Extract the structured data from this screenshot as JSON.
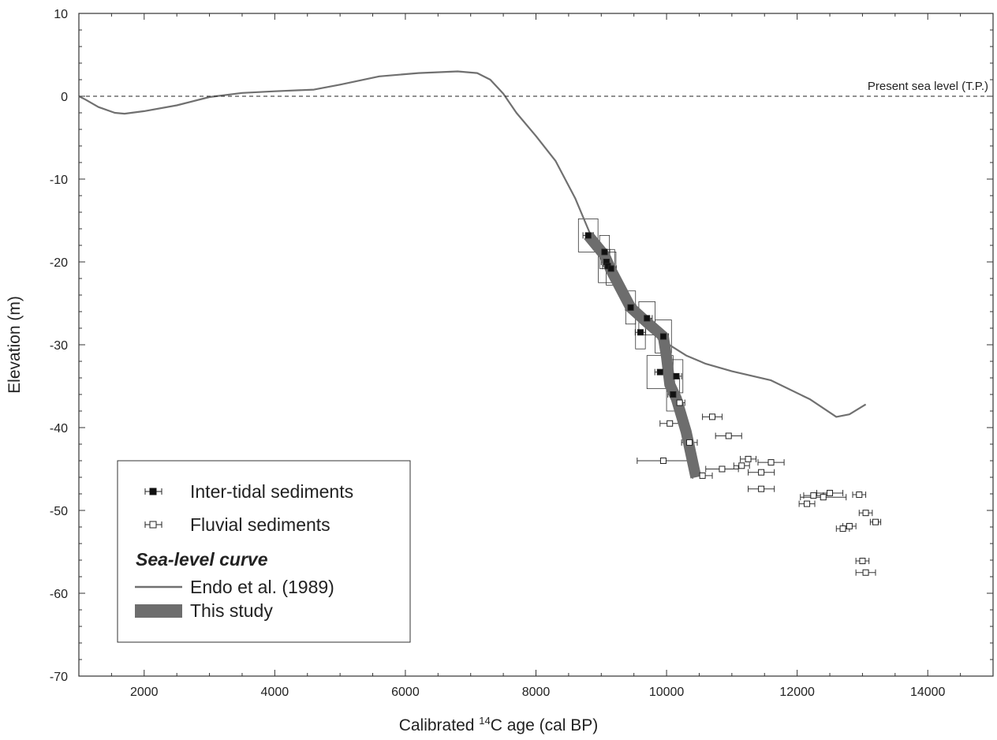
{
  "chart_data": {
    "type": "scatter",
    "xlabel_prefix": "Calibrated ",
    "xlabel_sup": "14",
    "xlabel_suffix": "C age (cal BP)",
    "ylabel": "Elevation (m)",
    "xlim": [
      1000,
      15000
    ],
    "ylim": [
      -70,
      10
    ],
    "x_ticks": [
      2000,
      4000,
      6000,
      8000,
      10000,
      12000,
      14000
    ],
    "y_ticks": [
      10,
      0,
      -10,
      -20,
      -30,
      -40,
      -50,
      -60,
      -70
    ],
    "grid": false,
    "reference_line": {
      "y": 0,
      "label": "Present sea level (T.P.)",
      "style": "dashed"
    },
    "legend": {
      "placement": "bottom-left",
      "intertidal_label": "Inter-tidal sediments",
      "fluvial_label": "Fluvial sediments",
      "curve_heading": "Sea-level curve",
      "endo_label": "Endo et al. (1989)",
      "study_label": "This study"
    },
    "series": [
      {
        "name": "Inter-tidal sediments",
        "marker": "filled-square",
        "points": [
          {
            "x": 8800,
            "y": -16.8,
            "xerr": 80
          },
          {
            "x": 9050,
            "y": -18.8,
            "xerr": 80
          },
          {
            "x": 9080,
            "y": -20.0,
            "xerr": 80
          },
          {
            "x": 9100,
            "y": -20.5,
            "xerr": 80
          },
          {
            "x": 9150,
            "y": -20.8,
            "xerr": 80
          },
          {
            "x": 9450,
            "y": -25.5,
            "xerr": 80
          },
          {
            "x": 9700,
            "y": -26.8,
            "xerr": 80
          },
          {
            "x": 9600,
            "y": -28.5,
            "xerr": 80
          },
          {
            "x": 9950,
            "y": -29.0,
            "xerr": 80
          },
          {
            "x": 9900,
            "y": -33.3,
            "xerr": 80
          },
          {
            "x": 10150,
            "y": -33.8,
            "xerr": 80
          },
          {
            "x": 10100,
            "y": -36.0,
            "xerr": 80
          }
        ]
      },
      {
        "name": "Fluvial sediments",
        "marker": "open-square",
        "points": [
          {
            "x": 10200,
            "y": -37.0,
            "xerr": 80
          },
          {
            "x": 10700,
            "y": -38.7,
            "xerr": 150
          },
          {
            "x": 10050,
            "y": -39.5,
            "xerr": 150
          },
          {
            "x": 10950,
            "y": -41.0,
            "xerr": 200
          },
          {
            "x": 10350,
            "y": -41.8,
            "xerr": 120
          },
          {
            "x": 9950,
            "y": -44.0,
            "xerr": 400
          },
          {
            "x": 11250,
            "y": -43.8,
            "xerr": 120
          },
          {
            "x": 11600,
            "y": -44.2,
            "xerr": 200
          },
          {
            "x": 11150,
            "y": -44.6,
            "xerr": 120
          },
          {
            "x": 10850,
            "y": -45.0,
            "xerr": 250
          },
          {
            "x": 11450,
            "y": -45.4,
            "xerr": 200
          },
          {
            "x": 10550,
            "y": -45.8,
            "xerr": 150
          },
          {
            "x": 11450,
            "y": -47.4,
            "xerr": 200
          },
          {
            "x": 12500,
            "y": -47.9,
            "xerr": 200
          },
          {
            "x": 12950,
            "y": -48.1,
            "xerr": 100
          },
          {
            "x": 12250,
            "y": -48.2,
            "xerr": 150
          },
          {
            "x": 12400,
            "y": -48.4,
            "xerr": 350
          },
          {
            "x": 12150,
            "y": -49.2,
            "xerr": 120
          },
          {
            "x": 13050,
            "y": -50.3,
            "xerr": 100
          },
          {
            "x": 13200,
            "y": -51.4,
            "xerr": 80
          },
          {
            "x": 12800,
            "y": -51.9,
            "xerr": 100
          },
          {
            "x": 12700,
            "y": -52.2,
            "xerr": 100
          },
          {
            "x": 13000,
            "y": -56.1,
            "xerr": 100
          },
          {
            "x": 13050,
            "y": -57.5,
            "xerr": 150
          }
        ]
      }
    ],
    "curves": [
      {
        "name": "Endo et al. (1989)",
        "style": "thin-line",
        "color": "#707070",
        "points": [
          [
            1000,
            0
          ],
          [
            1100,
            -0.4
          ],
          [
            1300,
            -1.3
          ],
          [
            1550,
            -2.0
          ],
          [
            1700,
            -2.1
          ],
          [
            2000,
            -1.8
          ],
          [
            2500,
            -1.1
          ],
          [
            3000,
            -0.1
          ],
          [
            3500,
            0.4
          ],
          [
            4000,
            0.6
          ],
          [
            4600,
            0.8
          ],
          [
            5000,
            1.4
          ],
          [
            5600,
            2.4
          ],
          [
            6200,
            2.8
          ],
          [
            6800,
            3.0
          ],
          [
            7100,
            2.8
          ],
          [
            7300,
            2.0
          ],
          [
            7500,
            0.3
          ],
          [
            7700,
            -2.0
          ],
          [
            8000,
            -4.8
          ],
          [
            8300,
            -7.8
          ],
          [
            8600,
            -12.3
          ],
          [
            8850,
            -17.0
          ],
          [
            9100,
            -20.7
          ],
          [
            9400,
            -24.6
          ],
          [
            9700,
            -27.6
          ],
          [
            10000,
            -29.8
          ],
          [
            10300,
            -31.3
          ],
          [
            10600,
            -32.3
          ],
          [
            11000,
            -33.2
          ],
          [
            11600,
            -34.3
          ],
          [
            12200,
            -36.6
          ],
          [
            12600,
            -38.7
          ],
          [
            12800,
            -38.4
          ],
          [
            13050,
            -37.2
          ]
        ]
      },
      {
        "name": "This study",
        "style": "thick-band",
        "color": "#6d6d6d",
        "points": [
          [
            8800,
            -16.8
          ],
          [
            9050,
            -19.2
          ],
          [
            9150,
            -21.0
          ],
          [
            9450,
            -25.5
          ],
          [
            9700,
            -27.3
          ],
          [
            9950,
            -29.0
          ],
          [
            10000,
            -31.5
          ],
          [
            10050,
            -34.8
          ],
          [
            10150,
            -36.5
          ],
          [
            10300,
            -40.5
          ],
          [
            10450,
            -46.0
          ]
        ]
      }
    ],
    "uncertainty_boxes": [
      {
        "x": 8800,
        "y": -16.8,
        "w": 300,
        "h": 4
      },
      {
        "x": 9050,
        "y": -18.8,
        "w": 150,
        "h": 4
      },
      {
        "x": 9150,
        "y": -20.8,
        "w": 150,
        "h": 4
      },
      {
        "x": 9080,
        "y": -20.5,
        "w": 250,
        "h": 4
      },
      {
        "x": 9450,
        "y": -25.5,
        "w": 150,
        "h": 4
      },
      {
        "x": 9700,
        "y": -26.8,
        "w": 250,
        "h": 4
      },
      {
        "x": 9600,
        "y": -28.5,
        "w": 150,
        "h": 4
      },
      {
        "x": 9950,
        "y": -29.0,
        "w": 250,
        "h": 4
      },
      {
        "x": 9900,
        "y": -33.3,
        "w": 400,
        "h": 4
      },
      {
        "x": 10150,
        "y": -33.8,
        "w": 200,
        "h": 4
      },
      {
        "x": 10100,
        "y": -36.0,
        "w": 200,
        "h": 4
      }
    ]
  }
}
